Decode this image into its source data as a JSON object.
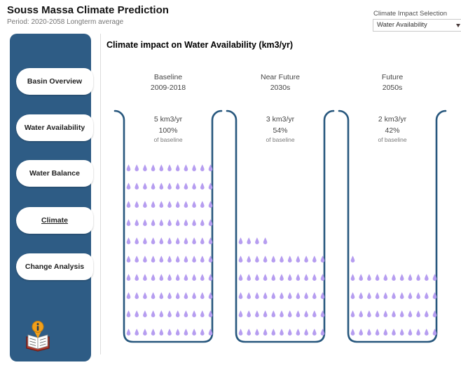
{
  "page": {
    "title": "Souss Massa Climate Prediction",
    "subtitle": "Period: 2020-2058 Longterm average"
  },
  "selector": {
    "label": "Climate Impact Selection",
    "value": "Water Availability"
  },
  "sidebar": {
    "items": [
      {
        "label": "Basin Overview",
        "active": false
      },
      {
        "label": "Water Availability",
        "active": false
      },
      {
        "label": "Water Balance",
        "active": false
      },
      {
        "label": "Climate",
        "active": true
      },
      {
        "label": "Change Analysis",
        "active": false
      }
    ],
    "info_icon": "book-info-icon"
  },
  "chart_data": {
    "type": "pictogram",
    "title": "Climate impact on Water Availability (km3/yr)",
    "unit": "km3/yr",
    "droplets_per_row": 11,
    "max_droplets": 110,
    "columns": [
      {
        "name": "Baseline",
        "period": "2009-2018",
        "value": "5 km3/yr",
        "percent": "100%",
        "note": "of baseline",
        "droplet_count": 110
      },
      {
        "name": "Near Future",
        "period": "2030s",
        "value": "3 km3/yr",
        "percent": "54%",
        "note": "of baseline",
        "droplet_count": 59
      },
      {
        "name": "Future",
        "period": "2050s",
        "value": "2 km3/yr",
        "percent": "42%",
        "note": "of baseline",
        "droplet_count": 45
      }
    ],
    "colors": {
      "droplet": "#b69df0",
      "beaker_stroke": "#27577d"
    }
  }
}
